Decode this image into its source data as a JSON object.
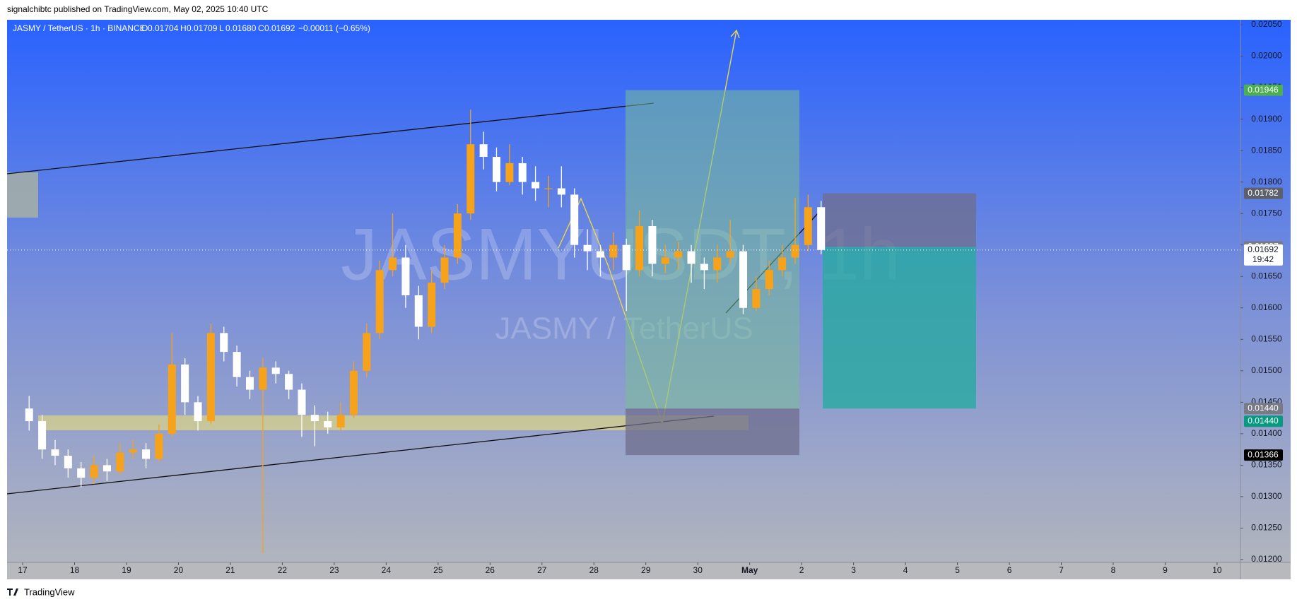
{
  "header": {
    "published": "signalchibtc published on TradingView.com, May 02, 2025 10:40 UTC",
    "footer": "TradingView"
  },
  "legend": {
    "symbol": "JASMY / TetherUS · 1h · BINANCE",
    "ohlc": [
      {
        "label": "O",
        "value": "0.01704"
      },
      {
        "label": "H",
        "value": "0.01709"
      },
      {
        "label": "L",
        "value": "0.01680"
      },
      {
        "label": "C",
        "value": "0.01692"
      }
    ],
    "change": "−0.00011 (−0.65%)"
  },
  "watermark": {
    "main": "JASMYUSDT, 1h",
    "sub": "JASMY / TetherUS"
  },
  "chart_data": {
    "type": "candlestick",
    "up_color": "#f7a21b",
    "down_color": "#ffffff",
    "xlim": [
      -0.3,
      23.45
    ],
    "ylim": [
      0.012,
      0.0205
    ],
    "xticks": [
      {
        "value": 0,
        "label": "17"
      },
      {
        "value": 1,
        "label": "18"
      },
      {
        "value": 2,
        "label": "19"
      },
      {
        "value": 3,
        "label": "20"
      },
      {
        "value": 4,
        "label": "21"
      },
      {
        "value": 5,
        "label": "22"
      },
      {
        "value": 6,
        "label": "23"
      },
      {
        "value": 7,
        "label": "24"
      },
      {
        "value": 8,
        "label": "25"
      },
      {
        "value": 9,
        "label": "26"
      },
      {
        "value": 10,
        "label": "27"
      },
      {
        "value": 11,
        "label": "28"
      },
      {
        "value": 12,
        "label": "29"
      },
      {
        "value": 13,
        "label": "30"
      },
      {
        "value": 14,
        "label": "May"
      },
      {
        "value": 15,
        "label": "2"
      },
      {
        "value": 16,
        "label": "3"
      },
      {
        "value": 17,
        "label": "4"
      },
      {
        "value": 18,
        "label": "5"
      },
      {
        "value": 19,
        "label": "6"
      },
      {
        "value": 20,
        "label": "7"
      },
      {
        "value": 21,
        "label": "8"
      },
      {
        "value": 22,
        "label": "9"
      },
      {
        "value": 23,
        "label": "10"
      }
    ],
    "yticks": [
      {
        "value": 0.012,
        "label": "0.01200"
      },
      {
        "value": 0.0125,
        "label": "0.01250"
      },
      {
        "value": 0.013,
        "label": "0.01300"
      },
      {
        "value": 0.0135,
        "label": "0.01350"
      },
      {
        "value": 0.014,
        "label": "0.01400"
      },
      {
        "value": 0.0145,
        "label": "0.01450"
      },
      {
        "value": 0.015,
        "label": "0.01500"
      },
      {
        "value": 0.0155,
        "label": "0.01550"
      },
      {
        "value": 0.016,
        "label": "0.01600"
      },
      {
        "value": 0.0165,
        "label": "0.01650"
      },
      {
        "value": 0.017,
        "label": "0.01700"
      },
      {
        "value": 0.0175,
        "label": "0.01750"
      },
      {
        "value": 0.018,
        "label": "0.01800"
      },
      {
        "value": 0.0185,
        "label": "0.01850"
      },
      {
        "value": 0.019,
        "label": "0.01900"
      },
      {
        "value": 0.0195,
        "label": "0.01950"
      },
      {
        "value": 0.02,
        "label": "0.02000"
      },
      {
        "value": 0.0205,
        "label": "0.02050"
      }
    ],
    "x": [
      0.125,
      0.375,
      0.625,
      0.875,
      1.125,
      1.375,
      1.625,
      1.875,
      2.125,
      2.375,
      2.625,
      2.875,
      3.125,
      3.375,
      3.625,
      3.875,
      4.125,
      4.375,
      4.625,
      4.875,
      5.125,
      5.375,
      5.625,
      5.875,
      6.125,
      6.375,
      6.625,
      6.875,
      7.125,
      7.375,
      7.625,
      7.875,
      8.125,
      8.375,
      8.625,
      8.875,
      9.125,
      9.375,
      9.625,
      9.875,
      10.125,
      10.375,
      10.625,
      10.875,
      11.125,
      11.375,
      11.625,
      11.875,
      12.125,
      12.375,
      12.625,
      12.875,
      13.125,
      13.375,
      13.625,
      13.875,
      14.125,
      14.375,
      14.625,
      14.875,
      15.125,
      15.375
    ],
    "candles": [
      [
        0.0144,
        0.0146,
        0.01405,
        0.0142
      ],
      [
        0.0142,
        0.0143,
        0.0136,
        0.01375
      ],
      [
        0.01375,
        0.0139,
        0.0135,
        0.01365
      ],
      [
        0.01365,
        0.01375,
        0.0133,
        0.01345
      ],
      [
        0.01345,
        0.01355,
        0.01315,
        0.0133
      ],
      [
        0.0133,
        0.01365,
        0.0132,
        0.0135
      ],
      [
        0.0135,
        0.0136,
        0.01325,
        0.0134
      ],
      [
        0.0134,
        0.01385,
        0.01335,
        0.0137
      ],
      [
        0.0137,
        0.0139,
        0.0136,
        0.01375
      ],
      [
        0.01375,
        0.01385,
        0.01345,
        0.0136
      ],
      [
        0.0136,
        0.01415,
        0.01355,
        0.014
      ],
      [
        0.014,
        0.0156,
        0.01395,
        0.0151
      ],
      [
        0.0151,
        0.0152,
        0.0143,
        0.0145
      ],
      [
        0.0145,
        0.0146,
        0.01405,
        0.0142
      ],
      [
        0.0142,
        0.01575,
        0.01415,
        0.0156
      ],
      [
        0.0156,
        0.0157,
        0.01515,
        0.0153
      ],
      [
        0.0153,
        0.0154,
        0.01475,
        0.0149
      ],
      [
        0.0149,
        0.015,
        0.01455,
        0.0147
      ],
      [
        0.0147,
        0.0152,
        0.0121,
        0.01505
      ],
      [
        0.01505,
        0.01515,
        0.0148,
        0.01495
      ],
      [
        0.01495,
        0.015,
        0.01455,
        0.0147
      ],
      [
        0.0147,
        0.0148,
        0.01395,
        0.0143
      ],
      [
        0.0143,
        0.01445,
        0.0138,
        0.0142
      ],
      [
        0.0142,
        0.01435,
        0.014,
        0.0141
      ],
      [
        0.0141,
        0.0145,
        0.01405,
        0.0143
      ],
      [
        0.0143,
        0.01515,
        0.01425,
        0.015
      ],
      [
        0.015,
        0.01575,
        0.0149,
        0.0156
      ],
      [
        0.0156,
        0.01675,
        0.0155,
        0.0166
      ],
      [
        0.0166,
        0.0175,
        0.0165,
        0.0168
      ],
      [
        0.0168,
        0.017,
        0.016,
        0.0162
      ],
      [
        0.0162,
        0.01635,
        0.0155,
        0.0157
      ],
      [
        0.0157,
        0.0166,
        0.0156,
        0.0164
      ],
      [
        0.0164,
        0.017,
        0.0163,
        0.0168
      ],
      [
        0.0168,
        0.01765,
        0.0167,
        0.0175
      ],
      [
        0.0175,
        0.01915,
        0.0174,
        0.0186
      ],
      [
        0.0186,
        0.0188,
        0.0182,
        0.0184
      ],
      [
        0.0184,
        0.01855,
        0.01785,
        0.018
      ],
      [
        0.018,
        0.0186,
        0.01795,
        0.0183
      ],
      [
        0.0183,
        0.0184,
        0.0178,
        0.018
      ],
      [
        0.018,
        0.01825,
        0.0177,
        0.0179
      ],
      [
        0.0179,
        0.0181,
        0.0176,
        0.0179
      ],
      [
        0.0179,
        0.01825,
        0.0176,
        0.0178
      ],
      [
        0.0178,
        0.0179,
        0.0168,
        0.017
      ],
      [
        0.017,
        0.01725,
        0.0166,
        0.0169
      ],
      [
        0.0169,
        0.017,
        0.0165,
        0.0168
      ],
      [
        0.0168,
        0.0172,
        0.0166,
        0.017
      ],
      [
        0.017,
        0.0171,
        0.01595,
        0.0166
      ],
      [
        0.0166,
        0.01755,
        0.0165,
        0.0173
      ],
      [
        0.0173,
        0.0174,
        0.0165,
        0.0167
      ],
      [
        0.0167,
        0.017,
        0.01655,
        0.0168
      ],
      [
        0.0168,
        0.01705,
        0.0166,
        0.0169
      ],
      [
        0.0169,
        0.017,
        0.0164,
        0.0167
      ],
      [
        0.0167,
        0.0168,
        0.0163,
        0.0166
      ],
      [
        0.0166,
        0.017,
        0.0164,
        0.0168
      ],
      [
        0.0168,
        0.0174,
        0.0167,
        0.0169
      ],
      [
        0.0169,
        0.017,
        0.0159,
        0.016
      ],
      [
        0.016,
        0.0165,
        0.01595,
        0.0163
      ],
      [
        0.0163,
        0.01675,
        0.0162,
        0.0166
      ],
      [
        0.0166,
        0.017,
        0.0165,
        0.0168
      ],
      [
        0.0168,
        0.01775,
        0.0167,
        0.017
      ],
      [
        0.017,
        0.0178,
        0.0169,
        0.0176
      ],
      [
        0.0176,
        0.0177,
        0.01685,
        0.01692
      ]
    ],
    "price_tags": [
      {
        "value": 0.01946,
        "color": "#4caf50"
      },
      {
        "value": 0.01782,
        "color": "#5d606b"
      },
      {
        "value": 0.01697,
        "color": "#787b86"
      },
      {
        "value": 0.01692,
        "color": "#ffffff",
        "countdown": "19:42"
      },
      {
        "value": 0.0144,
        "label": "0.01440",
        "color": "#787b86"
      },
      {
        "value": 0.0144,
        "label": "0.01440",
        "color": "#089981"
      },
      {
        "value": 0.01366,
        "color": "#000000"
      }
    ]
  }
}
